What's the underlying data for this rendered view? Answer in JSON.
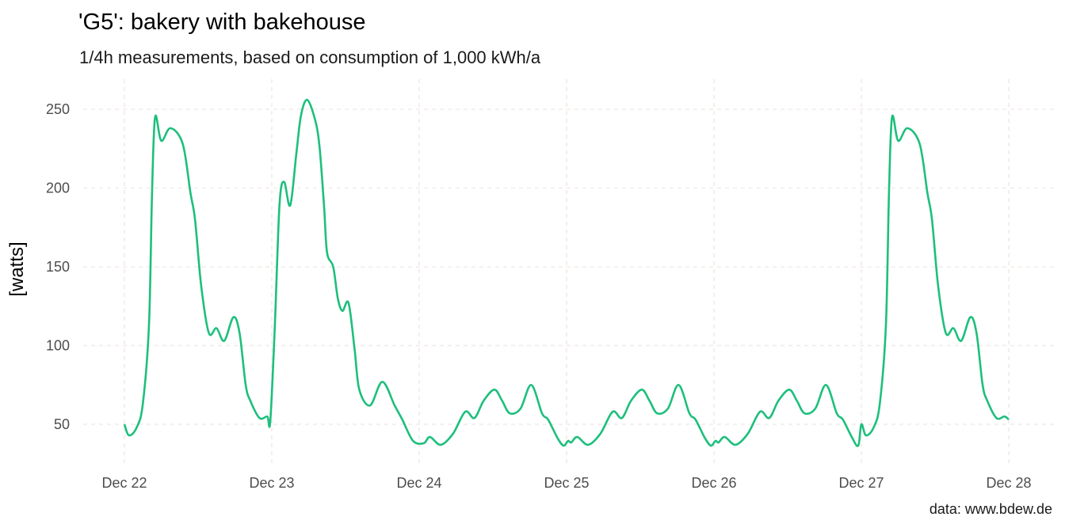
{
  "chart_data": {
    "type": "line",
    "title": "'G5': bakery with bakehouse",
    "subtitle": "1/4h measurements, based on consumption of 1,000 kWh/a",
    "ylabel": "[watts]",
    "xlabel": "",
    "caption": "data: www.bdew.de",
    "y_ticks": [
      50,
      100,
      150,
      200,
      250
    ],
    "x_ticks": [
      "Dec 22",
      "Dec 23",
      "Dec 24",
      "Dec 25",
      "Dec 26",
      "Dec 27",
      "Dec 28"
    ],
    "ylim": [
      23,
      269
    ],
    "grid": "dashed major gridlines",
    "line_color": "#1dbf7d",
    "grid_color": "#f2ebe7",
    "series": [
      {
        "points": [
          [
            "Dec 22 00:00",
            50
          ],
          [
            "Dec 22 00:45",
            43
          ],
          [
            "Dec 22 02:00",
            48
          ],
          [
            "Dec 22 03:00",
            63
          ],
          [
            "Dec 22 04:00",
            113
          ],
          [
            "Dec 22 04:30",
            197
          ],
          [
            "Dec 22 05:00",
            245
          ],
          [
            "Dec 22 06:00",
            230
          ],
          [
            "Dec 22 07:30",
            238
          ],
          [
            "Dec 22 09:30",
            228
          ],
          [
            "Dec 22 10:45",
            197
          ],
          [
            "Dec 22 11:30",
            180
          ],
          [
            "Dec 22 12:30",
            138
          ],
          [
            "Dec 22 13:45",
            108
          ],
          [
            "Dec 22 15:00",
            111
          ],
          [
            "Dec 22 16:15",
            103
          ],
          [
            "Dec 22 17:45",
            118
          ],
          [
            "Dec 22 18:45",
            108
          ],
          [
            "Dec 22 19:45",
            75
          ],
          [
            "Dec 22 20:30",
            65
          ],
          [
            "Dec 22 22:00",
            54
          ],
          [
            "Dec 22 23:15",
            55
          ],
          [
            "Dec 22 23:45",
            52
          ],
          [
            "Dec 23 00:30",
            113
          ],
          [
            "Dec 23 01:15",
            189
          ],
          [
            "Dec 23 02:00",
            204
          ],
          [
            "Dec 23 03:00",
            189
          ],
          [
            "Dec 23 04:00",
            222
          ],
          [
            "Dec 23 04:45",
            246
          ],
          [
            "Dec 23 05:45",
            256
          ],
          [
            "Dec 23 07:00",
            244
          ],
          [
            "Dec 23 07:45",
            227
          ],
          [
            "Dec 23 08:30",
            189
          ],
          [
            "Dec 23 09:00",
            159
          ],
          [
            "Dec 23 10:00",
            150
          ],
          [
            "Dec 23 10:45",
            130
          ],
          [
            "Dec 23 11:30",
            122
          ],
          [
            "Dec 23 12:30",
            127
          ],
          [
            "Dec 23 13:30",
            97
          ],
          [
            "Dec 23 14:15",
            72
          ],
          [
            "Dec 23 16:00",
            62
          ],
          [
            "Dec 23 18:00",
            77
          ],
          [
            "Dec 23 20:00",
            62
          ],
          [
            "Dec 23 21:15",
            53
          ],
          [
            "Dec 23 23:00",
            39.5
          ],
          [
            "Dec 24 00:45",
            38
          ],
          [
            "Dec 24 01:45",
            42
          ],
          [
            "Dec 24 03:30",
            37
          ],
          [
            "Dec 24 05:30",
            44
          ],
          [
            "Dec 24 07:30",
            58
          ],
          [
            "Dec 24 09:00",
            54
          ],
          [
            "Dec 24 10:30",
            65
          ],
          [
            "Dec 24 12:15",
            72
          ],
          [
            "Dec 24 13:30",
            65
          ],
          [
            "Dec 24 14:45",
            57
          ],
          [
            "Dec 24 16:30",
            60
          ],
          [
            "Dec 24 18:15",
            75
          ],
          [
            "Dec 24 20:00",
            57
          ],
          [
            "Dec 24 21:00",
            53
          ],
          [
            "Dec 24 22:30",
            41.5
          ],
          [
            "Dec 24 23:30",
            36.5
          ],
          [
            "Dec 25 00:15",
            39.5
          ],
          [
            "Dec 25 00:45",
            38.5
          ],
          [
            "Dec 25 01:45",
            42
          ],
          [
            "Dec 25 03:30",
            37
          ],
          [
            "Dec 25 05:30",
            44
          ],
          [
            "Dec 25 07:30",
            58
          ],
          [
            "Dec 25 09:00",
            54
          ],
          [
            "Dec 25 10:30",
            65
          ],
          [
            "Dec 25 12:15",
            72
          ],
          [
            "Dec 25 13:30",
            65
          ],
          [
            "Dec 25 14:45",
            57
          ],
          [
            "Dec 25 16:30",
            60
          ],
          [
            "Dec 25 18:15",
            75
          ],
          [
            "Dec 25 20:00",
            57
          ],
          [
            "Dec 25 21:00",
            53
          ],
          [
            "Dec 25 22:30",
            41.5
          ],
          [
            "Dec 25 23:30",
            36.5
          ],
          [
            "Dec 26 00:15",
            39.5
          ],
          [
            "Dec 26 00:45",
            38.5
          ],
          [
            "Dec 26 01:45",
            42
          ],
          [
            "Dec 26 03:30",
            37
          ],
          [
            "Dec 26 05:30",
            44
          ],
          [
            "Dec 26 07:30",
            58
          ],
          [
            "Dec 26 09:00",
            54
          ],
          [
            "Dec 26 10:30",
            65
          ],
          [
            "Dec 26 12:15",
            72
          ],
          [
            "Dec 26 13:30",
            65
          ],
          [
            "Dec 26 14:45",
            57
          ],
          [
            "Dec 26 16:30",
            60
          ],
          [
            "Dec 26 18:15",
            75
          ],
          [
            "Dec 26 20:00",
            57
          ],
          [
            "Dec 26 21:00",
            53
          ],
          [
            "Dec 26 22:30",
            41.5
          ],
          [
            "Dec 26 23:30",
            36.5
          ],
          [
            "Dec 27 00:00",
            50
          ],
          [
            "Dec 27 00:45",
            43
          ],
          [
            "Dec 27 02:00",
            48
          ],
          [
            "Dec 27 03:00",
            63
          ],
          [
            "Dec 27 04:00",
            113
          ],
          [
            "Dec 27 04:30",
            197
          ],
          [
            "Dec 27 05:00",
            245
          ],
          [
            "Dec 27 06:00",
            230
          ],
          [
            "Dec 27 07:30",
            238
          ],
          [
            "Dec 27 09:30",
            228
          ],
          [
            "Dec 27 10:45",
            197
          ],
          [
            "Dec 27 11:30",
            180
          ],
          [
            "Dec 27 12:30",
            138
          ],
          [
            "Dec 27 13:45",
            108
          ],
          [
            "Dec 27 15:00",
            111
          ],
          [
            "Dec 27 16:15",
            103
          ],
          [
            "Dec 27 17:45",
            118
          ],
          [
            "Dec 27 18:45",
            108
          ],
          [
            "Dec 27 19:45",
            75
          ],
          [
            "Dec 27 20:30",
            65
          ],
          [
            "Dec 27 22:00",
            54
          ],
          [
            "Dec 27 23:15",
            55
          ],
          [
            "Dec 27 23:45",
            54
          ],
          [
            "Dec 28 00:00",
            53
          ]
        ]
      }
    ]
  }
}
